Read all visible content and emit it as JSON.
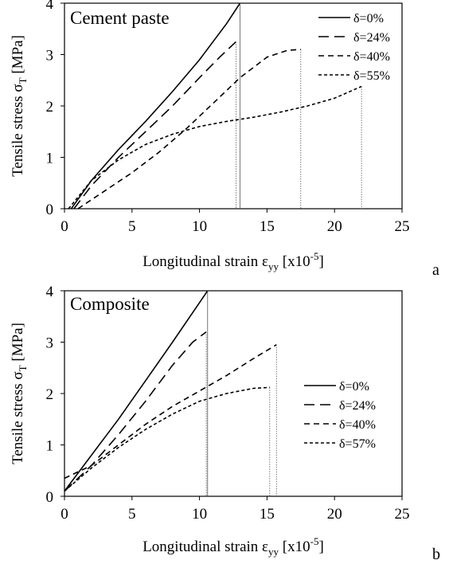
{
  "panels": [
    {
      "title": "Cement paste",
      "letter": "a",
      "xlabel_main": "Longitudinal strain ε",
      "xlabel_sub": "yy",
      "xlabel_unit_pre": " [x10",
      "xlabel_unit_sup": "-5",
      "xlabel_unit_post": "]",
      "ylabel_main": "Tensile stress σ",
      "ylabel_sub": "T",
      "ylabel_unit": " [MPa]"
    },
    {
      "title": "Composite",
      "letter": "b",
      "xlabel_main": "Longitudinal strain ε",
      "xlabel_sub": "yy",
      "xlabel_unit_pre": " [x10",
      "xlabel_unit_sup": "-5",
      "xlabel_unit_post": "]",
      "ylabel_main": "Tensile stress σ",
      "ylabel_sub": "T",
      "ylabel_unit": " [MPa]"
    }
  ],
  "chart_data": [
    {
      "type": "line",
      "title": "Cement paste",
      "xlabel": "Longitudinal strain εyy [x10-5]",
      "ylabel": "Tensile stress σT [MPa]",
      "xlim": [
        0,
        25
      ],
      "ylim": [
        0,
        4
      ],
      "xticks": [
        0,
        5,
        10,
        15,
        20,
        25
      ],
      "yticks": [
        0,
        1,
        2,
        3,
        4
      ],
      "grid": false,
      "legend_position": "top-right",
      "series": [
        {
          "name": "δ=0%",
          "dash": "solid",
          "color": "#000000",
          "x": [
            0.5,
            2,
            4,
            6,
            8,
            10,
            12,
            13
          ],
          "y": [
            0,
            0.55,
            1.15,
            1.7,
            2.28,
            2.9,
            3.6,
            4.0
          ],
          "drop_x": 13
        },
        {
          "name": "δ=24%",
          "dash": "long",
          "color": "#000000",
          "x": [
            0.7,
            2,
            4,
            6,
            8,
            10,
            11.5,
            12.7
          ],
          "y": [
            0,
            0.45,
            1.0,
            1.5,
            2.0,
            2.55,
            2.95,
            3.25
          ],
          "drop_x": 12.7
        },
        {
          "name": "δ=40%",
          "dash": "medium",
          "color": "#000000",
          "x": [
            1.0,
            3,
            5,
            7,
            9,
            11,
            13,
            15,
            16.5,
            17.5
          ],
          "y": [
            0,
            0.35,
            0.7,
            1.1,
            1.55,
            2.05,
            2.55,
            2.95,
            3.08,
            3.1
          ],
          "drop_x": 17.5
        },
        {
          "name": "δ=55%",
          "dash": "short",
          "color": "#000000",
          "x": [
            0.3,
            2,
            4,
            6,
            8,
            10,
            12,
            14,
            16,
            18,
            20,
            22
          ],
          "y": [
            0,
            0.55,
            0.95,
            1.25,
            1.45,
            1.6,
            1.7,
            1.78,
            1.88,
            2.0,
            2.15,
            2.38
          ],
          "drop_x": 22
        }
      ]
    },
    {
      "type": "line",
      "title": "Composite",
      "xlabel": "Longitudinal strain εyy [x10-5]",
      "ylabel": "Tensile stress σT [MPa]",
      "xlim": [
        0,
        25
      ],
      "ylim": [
        0,
        4
      ],
      "xticks": [
        0,
        5,
        10,
        15,
        20,
        25
      ],
      "yticks": [
        0,
        1,
        2,
        3,
        4
      ],
      "grid": false,
      "legend_position": "right",
      "series": [
        {
          "name": "δ=0%",
          "dash": "solid",
          "color": "#000000",
          "x": [
            0,
            2,
            4,
            6,
            8,
            10.6
          ],
          "y": [
            0.1,
            0.8,
            1.5,
            2.25,
            3.0,
            4.0
          ],
          "drop_x": 10.6
        },
        {
          "name": "δ=24%",
          "dash": "long",
          "color": "#000000",
          "x": [
            0,
            2,
            4,
            6,
            8,
            9.5,
            10.5
          ],
          "y": [
            0.1,
            0.6,
            1.2,
            1.85,
            2.55,
            3.0,
            3.2
          ],
          "drop_x": 10.5
        },
        {
          "name": "δ=40%",
          "dash": "medium",
          "color": "#000000",
          "x": [
            0,
            2,
            4,
            6,
            8,
            10,
            12,
            14,
            15.7
          ],
          "y": [
            0.35,
            0.6,
            1.0,
            1.4,
            1.75,
            2.05,
            2.35,
            2.68,
            2.95
          ],
          "drop_x": 15.7
        },
        {
          "name": "δ=57%",
          "dash": "short",
          "color": "#000000",
          "x": [
            0,
            2,
            4,
            6,
            8,
            10,
            12,
            14,
            15.2
          ],
          "y": [
            0.1,
            0.55,
            0.95,
            1.3,
            1.6,
            1.85,
            2.0,
            2.1,
            2.12
          ],
          "drop_x": 15.2
        }
      ]
    }
  ]
}
